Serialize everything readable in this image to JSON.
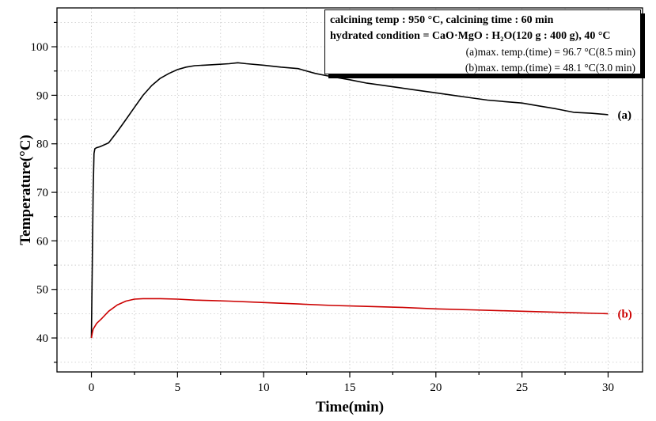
{
  "chart_data": {
    "type": "line",
    "title": "",
    "xlabel": "Time(min)",
    "ylabel": "Temperature(°C)",
    "xlim": [
      -2,
      32
    ],
    "ylim": [
      33,
      108
    ],
    "xticks": [
      0,
      5,
      10,
      15,
      20,
      25,
      30
    ],
    "yticks": [
      40,
      50,
      60,
      70,
      80,
      90,
      100
    ],
    "grid": true,
    "series": [
      {
        "name": "(a)",
        "color": "#000000",
        "x": [
          0,
          0.05,
          0.1,
          0.15,
          0.2,
          0.3,
          0.5,
          1,
          1.5,
          2,
          2.5,
          3,
          3.5,
          4,
          4.5,
          5,
          5.5,
          6,
          6.5,
          7,
          8,
          8.5,
          9,
          10,
          11,
          12,
          13,
          14,
          15,
          16,
          17,
          18,
          19,
          20,
          21,
          22,
          23,
          24,
          25,
          26,
          27,
          28,
          29,
          30
        ],
        "y": [
          40,
          55,
          70,
          78,
          79,
          79.2,
          79.4,
          80.2,
          82.5,
          85,
          87.5,
          90,
          92,
          93.5,
          94.5,
          95.3,
          95.8,
          96.1,
          96.2,
          96.3,
          96.5,
          96.7,
          96.5,
          96.2,
          95.8,
          95.5,
          94.5,
          93.8,
          93.2,
          92.5,
          92,
          91.5,
          91,
          90.5,
          90,
          89.5,
          89,
          88.7,
          88.4,
          87.8,
          87.2,
          86.5,
          86.3,
          86
        ]
      },
      {
        "name": "(b)",
        "color": "#cc0000",
        "x": [
          0,
          0.05,
          0.1,
          0.3,
          0.6,
          1,
          1.5,
          2,
          2.5,
          3,
          3.5,
          4,
          5,
          6,
          7,
          8,
          10,
          12,
          14,
          16,
          18,
          20,
          22,
          24,
          26,
          28,
          30
        ],
        "y": [
          40,
          41,
          41.8,
          43,
          44,
          45.5,
          46.8,
          47.6,
          48,
          48.1,
          48.1,
          48.1,
          48,
          47.8,
          47.7,
          47.6,
          47.3,
          47,
          46.7,
          46.5,
          46.3,
          46,
          45.8,
          45.6,
          45.4,
          45.2,
          45
        ]
      }
    ],
    "annotations": {
      "line1": "calcining temp : 950 °C, calcining time : 60 min",
      "line2": "hydrated condition = CaO·MgO : H₂O(120 g : 400 g), 40 °C",
      "line3": "(a)max. temp.(time) = 96.7 °C(8.5 min)",
      "line4": "(b)max. temp.(time) = 48.1 °C(3.0 min)"
    }
  }
}
